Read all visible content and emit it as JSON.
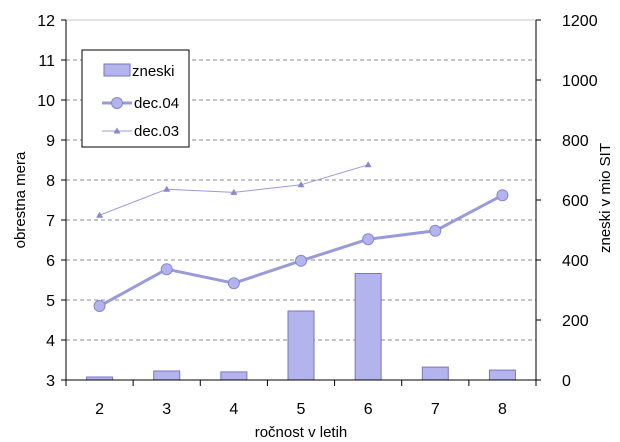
{
  "chart_data": {
    "type": "bar",
    "categories": [
      "2",
      "3",
      "4",
      "5",
      "6",
      "7",
      "8"
    ],
    "xlabel": "ročnost v letih",
    "ylabel_left": "obrestna mera",
    "ylabel_right": "zneski v mio SIT",
    "ylim_left": [
      3,
      12
    ],
    "ylim_right": [
      0,
      1200
    ],
    "yticks_left": [
      "3",
      "4",
      "5",
      "6",
      "7",
      "8",
      "9",
      "10",
      "11",
      "12"
    ],
    "yticks_right": [
      "0",
      "200",
      "400",
      "600",
      "800",
      "1000",
      "1200"
    ],
    "grid": "horizontal dashed",
    "legend_position": "top-left",
    "series": [
      {
        "name": "zneski",
        "type": "bar",
        "axis": "right",
        "color": "#b3b3ee",
        "values": [
          10,
          30,
          27,
          230,
          355,
          43,
          33
        ]
      },
      {
        "name": "dec.04",
        "type": "line",
        "axis": "left",
        "color": "#9999dd",
        "marker": "circle",
        "values": [
          4.85,
          5.77,
          5.42,
          5.98,
          6.52,
          6.73,
          7.62
        ]
      },
      {
        "name": "dec.03",
        "type": "line",
        "axis": "left",
        "color": "#9999dd",
        "marker": "triangle",
        "values": [
          7.12,
          7.77,
          7.69,
          7.88,
          8.38,
          null,
          null
        ]
      }
    ]
  }
}
